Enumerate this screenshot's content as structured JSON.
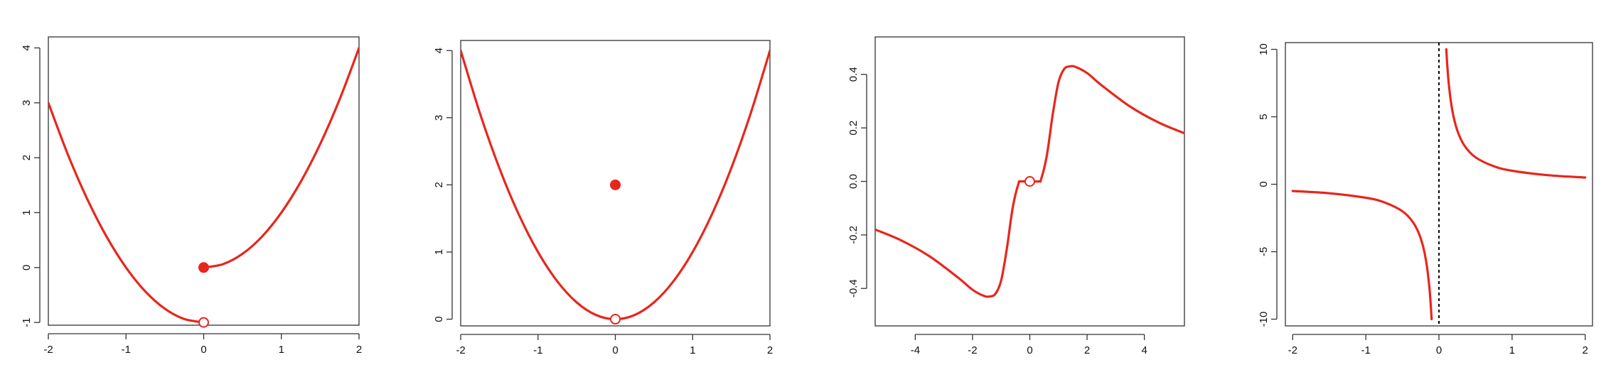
{
  "colors": {
    "curve": "#e8261c",
    "marker": "#e8261c",
    "frame": "#333333",
    "text": "#111111"
  },
  "chart_data": [
    {
      "type": "line",
      "xlim": [
        -2,
        2
      ],
      "ylim": [
        -1.05,
        4.2
      ],
      "xticks": [
        -2,
        -1,
        0,
        1,
        2
      ],
      "xtick_labels": [
        "-2",
        "-1",
        "0",
        "1",
        "2"
      ],
      "yticks": [
        -1,
        0,
        1,
        2,
        3,
        4
      ],
      "ytick_labels": [
        "-1",
        "0",
        "1",
        "2",
        "3",
        "4"
      ],
      "series": [
        {
          "x": [
            -2,
            -1.75,
            -1.5,
            -1.25,
            -1,
            -0.75,
            -0.5,
            -0.25,
            0
          ],
          "y": [
            3,
            2.0625,
            1.25,
            0.5625,
            0,
            -0.4375,
            -0.75,
            -0.9375,
            -1
          ]
        },
        {
          "x": [
            0,
            0.25,
            0.5,
            0.75,
            1,
            1.25,
            1.5,
            1.75,
            2
          ],
          "y": [
            0,
            0.0625,
            0.25,
            0.5625,
            1,
            1.5625,
            2.25,
            3.0625,
            4
          ]
        }
      ],
      "points": [
        {
          "x": 0,
          "y": 0,
          "filled": true
        },
        {
          "x": 0,
          "y": -1,
          "filled": false
        }
      ]
    },
    {
      "type": "line",
      "xlim": [
        -2,
        2
      ],
      "ylim": [
        -0.1,
        4.15
      ],
      "xticks": [
        -2,
        -1,
        0,
        1,
        2
      ],
      "xtick_labels": [
        "-2",
        "-1",
        "0",
        "1",
        "2"
      ],
      "yticks": [
        0,
        1,
        2,
        3,
        4
      ],
      "ytick_labels": [
        "0",
        "1",
        "2",
        "3",
        "4"
      ],
      "series": [
        {
          "x": [
            -2,
            -1.75,
            -1.5,
            -1.25,
            -1,
            -0.75,
            -0.5,
            -0.25,
            0,
            0.25,
            0.5,
            0.75,
            1,
            1.25,
            1.5,
            1.75,
            2
          ],
          "y": [
            4,
            3.0625,
            2.25,
            1.5625,
            1,
            0.5625,
            0.25,
            0.0625,
            0,
            0.0625,
            0.25,
            0.5625,
            1,
            1.5625,
            2.25,
            3.0625,
            4
          ]
        }
      ],
      "points": [
        {
          "x": 0,
          "y": 2,
          "filled": true
        },
        {
          "x": 0,
          "y": 0,
          "filled": false
        }
      ]
    },
    {
      "type": "line",
      "xlim": [
        -5.4,
        5.4
      ],
      "ylim": [
        -0.54,
        0.54
      ],
      "xticks": [
        -4,
        -2,
        0,
        2,
        4
      ],
      "xtick_labels": [
        "-4",
        "-2",
        "0",
        "2",
        "4"
      ],
      "yticks": [
        -0.4,
        -0.2,
        0,
        0.2,
        0.4
      ],
      "ytick_labels": [
        "-0.4",
        "-0.2",
        "0.0",
        "0.2",
        "0.4"
      ],
      "series": [
        {
          "x": [
            -5.4,
            -4.5,
            -3.5,
            -2.5,
            -2,
            -1.6,
            -1.4,
            -1.2,
            -1,
            -0.8,
            -0.6,
            -0.4,
            -0.3,
            0.3,
            0.4,
            0.6,
            0.8,
            1,
            1.2,
            1.4,
            1.6,
            2,
            2.5,
            3.5,
            4.5,
            5.4
          ],
          "y": [
            -0.18,
            -0.22,
            -0.28,
            -0.36,
            -0.405,
            -0.428,
            -0.43,
            -0.42,
            -0.37,
            -0.25,
            -0.1,
            -0.01,
            0,
            0,
            0.01,
            0.1,
            0.25,
            0.37,
            0.42,
            0.43,
            0.428,
            0.405,
            0.36,
            0.28,
            0.22,
            0.18
          ]
        }
      ],
      "points": [
        {
          "x": 0,
          "y": 0,
          "filled": false
        }
      ]
    },
    {
      "type": "line",
      "xlim": [
        -2.1,
        2.1
      ],
      "ylim": [
        -10.5,
        10.5
      ],
      "xticks": [
        -2,
        -1,
        0,
        1,
        2
      ],
      "xtick_labels": [
        "-2",
        "-1",
        "0",
        "1",
        "2"
      ],
      "yticks": [
        -10,
        -5,
        0,
        5,
        10
      ],
      "ytick_labels": [
        "-10",
        "-5",
        "0",
        "5",
        "10"
      ],
      "series": [
        {
          "x": [
            -2,
            -1.5,
            -1,
            -0.75,
            -0.5,
            -0.35,
            -0.25,
            -0.18,
            -0.13,
            -0.1
          ],
          "y": [
            -0.5,
            -0.667,
            -1,
            -1.333,
            -2,
            -2.857,
            -4,
            -5.556,
            -7.692,
            -10
          ]
        },
        {
          "x": [
            0.1,
            0.13,
            0.18,
            0.25,
            0.35,
            0.5,
            0.75,
            1,
            1.5,
            2
          ],
          "y": [
            10,
            7.692,
            5.556,
            4,
            2.857,
            2,
            1.333,
            1,
            0.667,
            0.5
          ]
        }
      ],
      "vline_x": 0
    }
  ]
}
